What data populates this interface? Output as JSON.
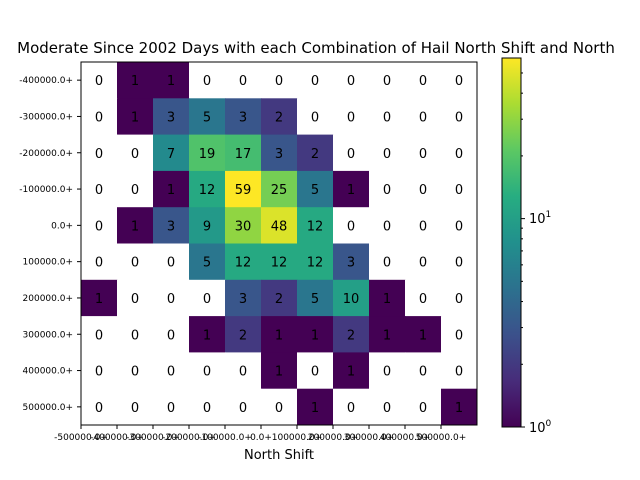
{
  "chart_data": {
    "type": "heatmap",
    "title": "Moderate Since 2002 Days with each Combination of Hail North Shift and North",
    "xlabel": "North Shift",
    "ylabel": "",
    "x_tick_labels": [
      "-500000.0+",
      "-400000.0+",
      "-300000.0+",
      "-200000.0+",
      "-100000.0+",
      "0.0+",
      "100000.0+",
      "200000.0+",
      "300000.0+",
      "400000.0+",
      "500000.0+"
    ],
    "y_tick_labels": [
      "-400000.0+",
      "-300000.0+",
      "-200000.0+",
      "-100000.0+",
      "0.0+",
      "100000.0+",
      "200000.0+",
      "300000.0+",
      "400000.0+",
      "500000.0+"
    ],
    "values": [
      [
        0,
        1,
        1,
        0,
        0,
        0,
        0,
        0,
        0,
        0,
        0
      ],
      [
        0,
        1,
        3,
        5,
        3,
        2,
        0,
        0,
        0,
        0,
        0
      ],
      [
        0,
        0,
        7,
        19,
        17,
        3,
        2,
        0,
        0,
        0,
        0
      ],
      [
        0,
        0,
        1,
        12,
        59,
        25,
        5,
        1,
        0,
        0,
        0
      ],
      [
        0,
        1,
        3,
        9,
        30,
        48,
        12,
        0,
        0,
        0,
        0
      ],
      [
        0,
        0,
        0,
        5,
        12,
        12,
        12,
        3,
        0,
        0,
        0
      ],
      [
        1,
        0,
        0,
        0,
        3,
        2,
        5,
        10,
        1,
        0,
        0
      ],
      [
        0,
        0,
        0,
        1,
        2,
        1,
        1,
        2,
        1,
        1,
        0
      ],
      [
        0,
        0,
        0,
        0,
        0,
        1,
        0,
        1,
        0,
        0,
        0
      ],
      [
        0,
        0,
        0,
        0,
        0,
        0,
        1,
        0,
        0,
        0,
        1
      ]
    ],
    "colorscale": "viridis",
    "color_scale_type": "log",
    "color_range": [
      1,
      59
    ],
    "zero_color": "#ffffff",
    "colorbar_labels": {
      "low": "10",
      "low_exp": "0",
      "mid": "10",
      "mid_exp": "1"
    }
  }
}
